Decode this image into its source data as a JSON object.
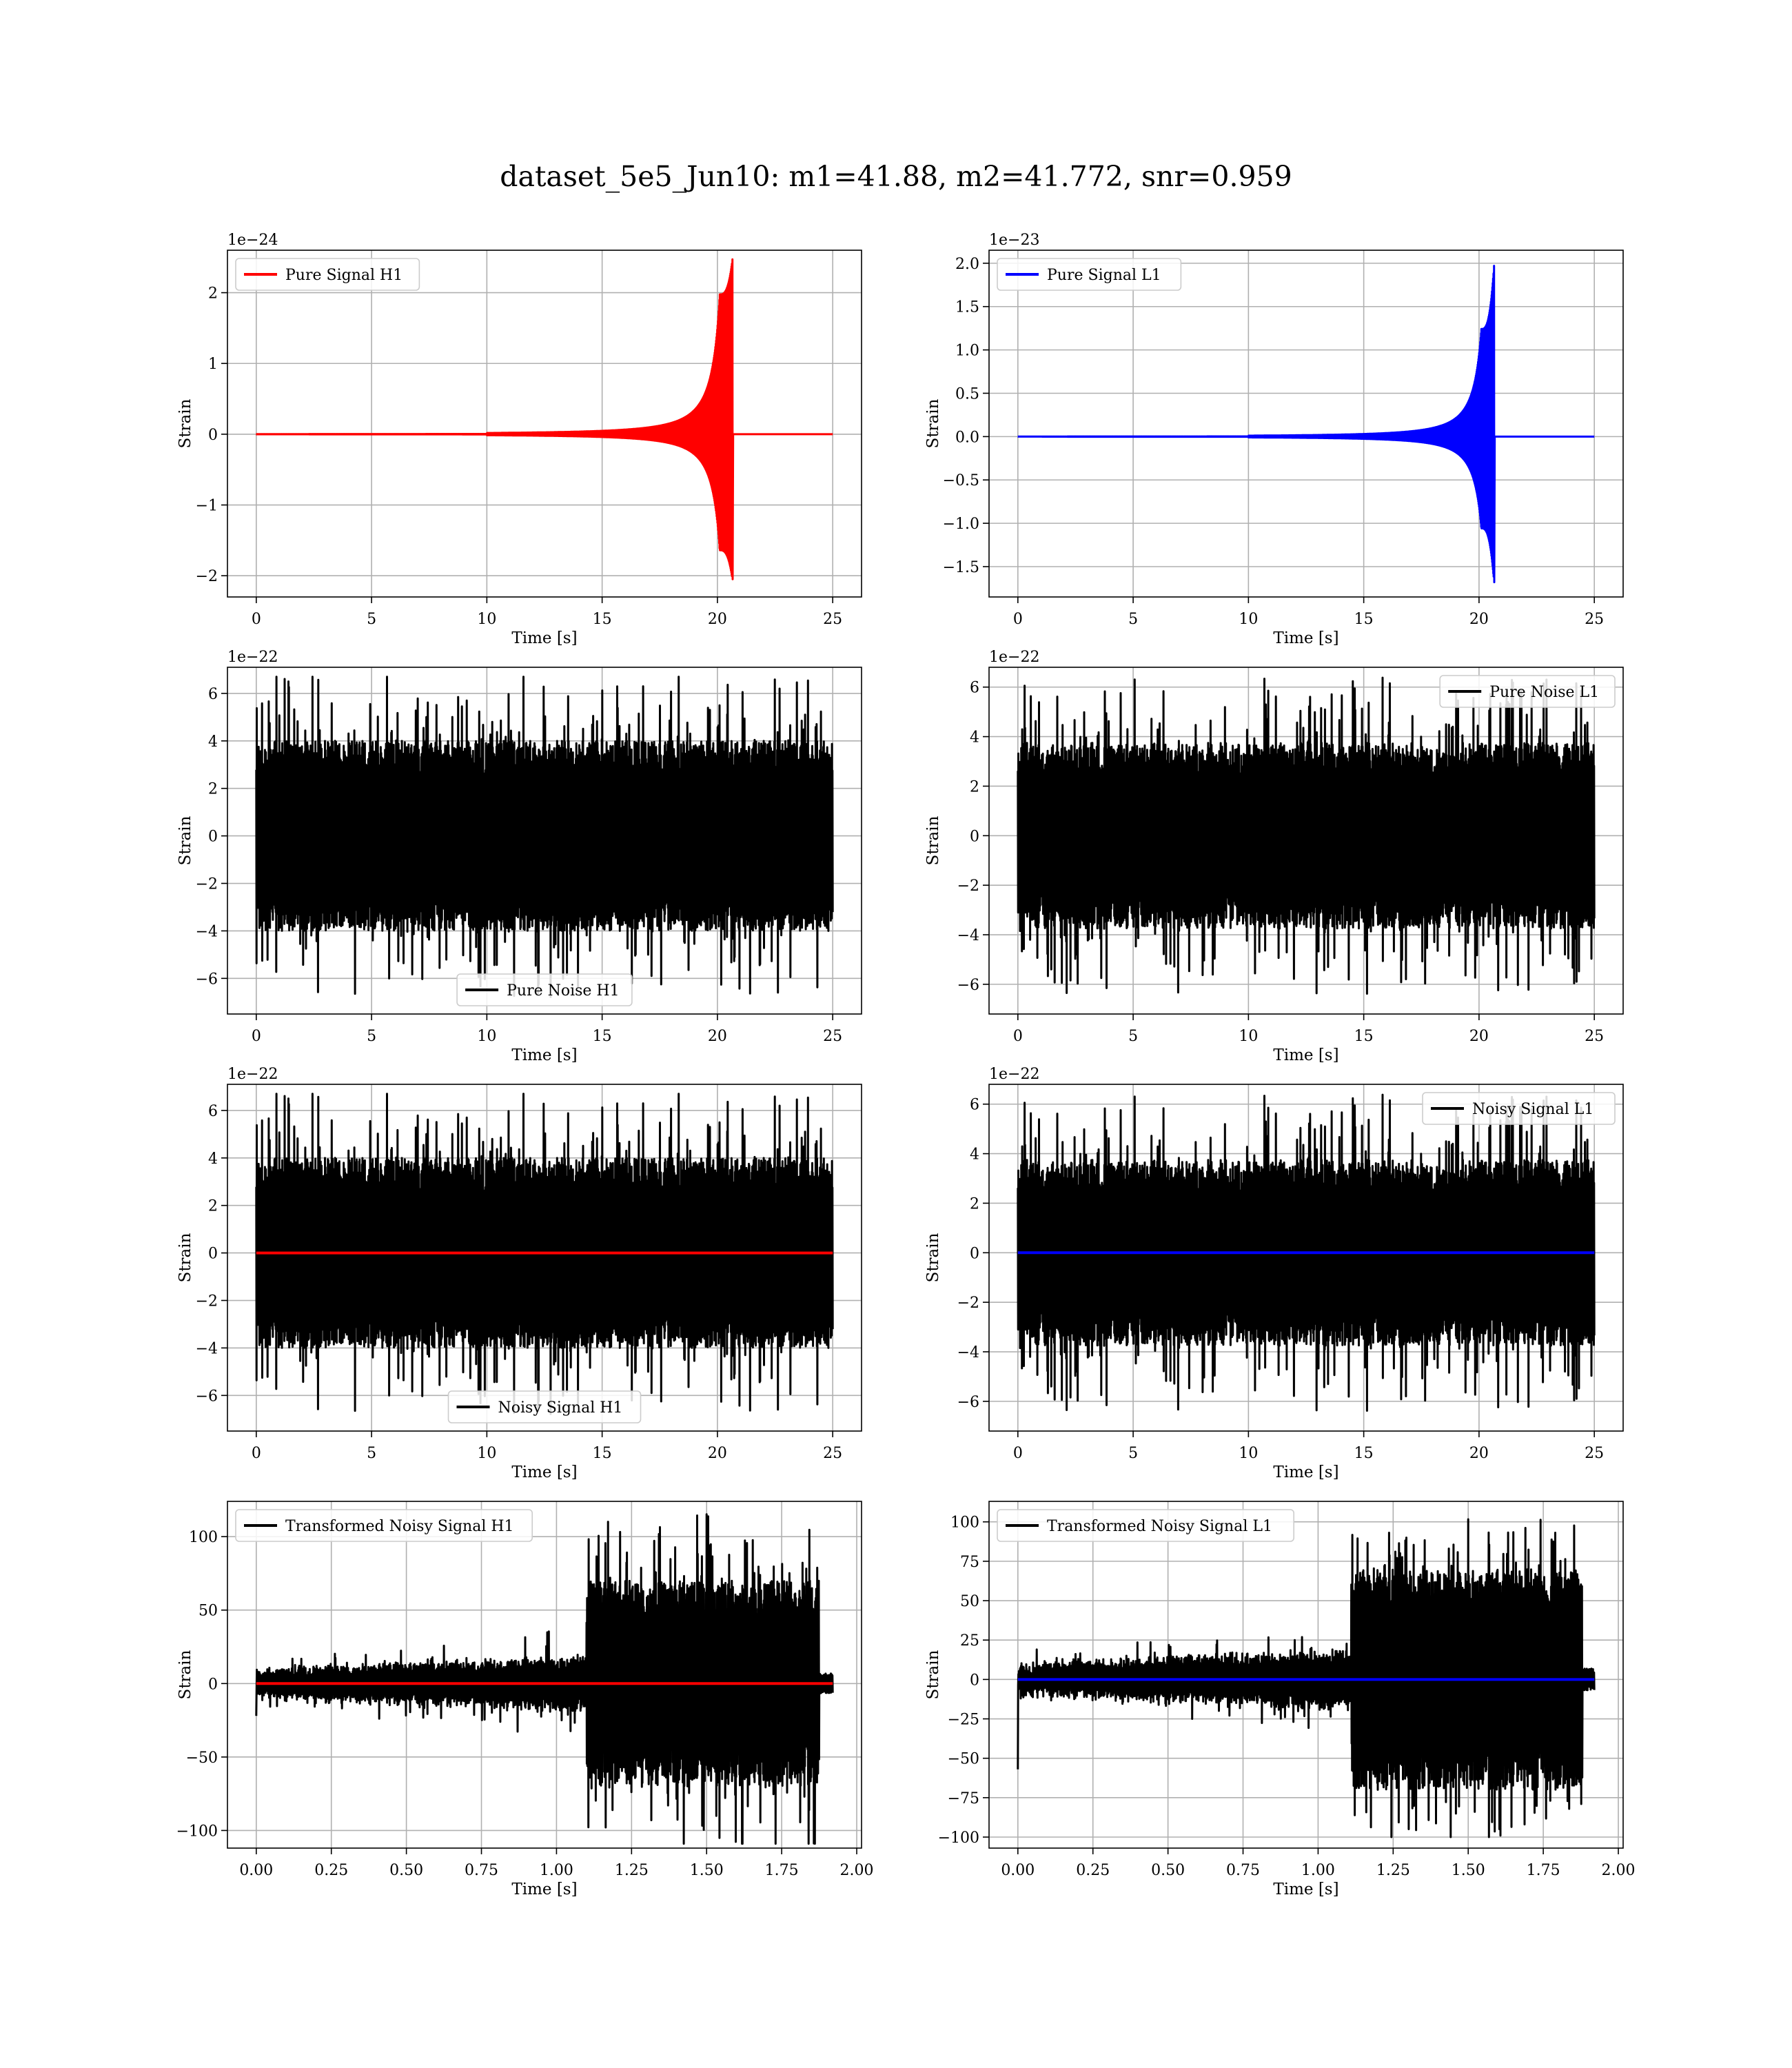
{
  "figure": {
    "suptitle": "dataset_5e5_Jun10: m1=41.88, m2=41.772, snr=0.959"
  },
  "chart_data": [
    {
      "id": "p0",
      "type": "line",
      "ylabel": "Strain",
      "xlabel": "Time [s]",
      "offset_text": "1e−24",
      "xlim": [
        -1.25,
        26.25
      ],
      "ylim": [
        -2.3,
        2.6
      ],
      "xticks": [
        0,
        5,
        10,
        15,
        20,
        25
      ],
      "xtick_labels": [
        "0",
        "5",
        "10",
        "15",
        "20",
        "25"
      ],
      "yticks": [
        -2,
        -1,
        0,
        1,
        2
      ],
      "ytick_labels": [
        "−2",
        "−1",
        "0",
        "1",
        "2"
      ],
      "grid": true,
      "legend": {
        "position": "upper-left",
        "entries": [
          {
            "label": "Pure Signal H1",
            "color": "#ff0000"
          }
        ]
      },
      "series": [
        {
          "name": "Pure Signal H1",
          "color": "#ff0000",
          "kind": "chirp",
          "x_start": 0,
          "x_end": 25,
          "merger": 20.65,
          "peak_pos": 2.47,
          "peak_neg": -2.05,
          "plateau": 0.8
        }
      ]
    },
    {
      "id": "p1",
      "type": "line",
      "ylabel": "Strain",
      "xlabel": "Time [s]",
      "offset_text": "1e−23",
      "xlim": [
        -1.25,
        26.25
      ],
      "ylim": [
        -1.85,
        2.15
      ],
      "xticks": [
        0,
        5,
        10,
        15,
        20,
        25
      ],
      "xtick_labels": [
        "0",
        "5",
        "10",
        "15",
        "20",
        "25"
      ],
      "yticks": [
        -1.5,
        -1.0,
        -0.5,
        0.0,
        0.5,
        1.0,
        1.5,
        2.0
      ],
      "ytick_labels": [
        "−1.5",
        "−1.0",
        "−0.5",
        "0.0",
        "0.5",
        "1.0",
        "1.5",
        "2.0"
      ],
      "grid": true,
      "legend": {
        "position": "upper-left",
        "entries": [
          {
            "label": "Pure Signal L1",
            "color": "#0000ff"
          }
        ]
      },
      "series": [
        {
          "name": "Pure Signal L1",
          "color": "#0000ff",
          "kind": "chirp",
          "x_start": 0,
          "x_end": 25,
          "merger": 20.65,
          "peak_pos": 1.97,
          "peak_neg": -1.68,
          "plateau": 0.63
        }
      ]
    },
    {
      "id": "p2",
      "type": "line",
      "ylabel": "Strain",
      "xlabel": "Time [s]",
      "offset_text": "1e−22",
      "xlim": [
        -1.25,
        26.25
      ],
      "ylim": [
        -7.5,
        7.1
      ],
      "xticks": [
        0,
        5,
        10,
        15,
        20,
        25
      ],
      "xtick_labels": [
        "0",
        "5",
        "10",
        "15",
        "20",
        "25"
      ],
      "yticks": [
        -6,
        -4,
        -2,
        0,
        2,
        4,
        6
      ],
      "ytick_labels": [
        "−6",
        "−4",
        "−2",
        "0",
        "2",
        "4",
        "6"
      ],
      "grid": true,
      "legend": {
        "position": "lower-center",
        "entries": [
          {
            "label": "Pure Noise H1",
            "color": "#000000"
          }
        ]
      },
      "series": [
        {
          "name": "Pure Noise H1",
          "color": "#000000",
          "kind": "noise",
          "x_start": 0,
          "x_end": 25,
          "max": 6.7,
          "min": -6.9,
          "band": 3.2,
          "seed": 11
        }
      ]
    },
    {
      "id": "p3",
      "type": "line",
      "ylabel": "Strain",
      "xlabel": "Time [s]",
      "offset_text": "1e−22",
      "xlim": [
        -1.25,
        26.25
      ],
      "ylim": [
        -7.2,
        6.8
      ],
      "xticks": [
        0,
        5,
        10,
        15,
        20,
        25
      ],
      "xtick_labels": [
        "0",
        "5",
        "10",
        "15",
        "20",
        "25"
      ],
      "yticks": [
        -6,
        -4,
        -2,
        0,
        2,
        4,
        6
      ],
      "ytick_labels": [
        "−6",
        "−4",
        "−2",
        "0",
        "2",
        "4",
        "6"
      ],
      "grid": true,
      "legend": {
        "position": "upper-right",
        "entries": [
          {
            "label": "Pure Noise L1",
            "color": "#000000"
          }
        ]
      },
      "series": [
        {
          "name": "Pure Noise L1",
          "color": "#000000",
          "kind": "noise",
          "x_start": 0,
          "x_end": 25,
          "max": 6.4,
          "min": -6.4,
          "band": 3.0,
          "seed": 23
        }
      ]
    },
    {
      "id": "p4",
      "type": "line",
      "ylabel": "Strain",
      "xlabel": "Time [s]",
      "offset_text": "1e−22",
      "xlim": [
        -1.25,
        26.25
      ],
      "ylim": [
        -7.5,
        7.1
      ],
      "xticks": [
        0,
        5,
        10,
        15,
        20,
        25
      ],
      "xtick_labels": [
        "0",
        "5",
        "10",
        "15",
        "20",
        "25"
      ],
      "yticks": [
        -6,
        -4,
        -2,
        0,
        2,
        4,
        6
      ],
      "ytick_labels": [
        "−6",
        "−4",
        "−2",
        "0",
        "2",
        "4",
        "6"
      ],
      "grid": true,
      "legend": {
        "position": "lower-center",
        "entries": [
          {
            "label": "Noisy Signal H1",
            "color": "#000000"
          }
        ]
      },
      "series": [
        {
          "name": "Noisy Signal H1",
          "color": "#000000",
          "kind": "noise",
          "x_start": 0,
          "x_end": 25,
          "max": 6.7,
          "min": -6.9,
          "band": 3.2,
          "seed": 11
        },
        {
          "color": "#ff0000",
          "kind": "flat",
          "x_start": 0,
          "x_end": 25,
          "value": 0
        }
      ]
    },
    {
      "id": "p5",
      "type": "line",
      "ylabel": "Strain",
      "xlabel": "Time [s]",
      "offset_text": "1e−22",
      "xlim": [
        -1.25,
        26.25
      ],
      "ylim": [
        -7.2,
        6.8
      ],
      "xticks": [
        0,
        5,
        10,
        15,
        20,
        25
      ],
      "xtick_labels": [
        "0",
        "5",
        "10",
        "15",
        "20",
        "25"
      ],
      "yticks": [
        -6,
        -4,
        -2,
        0,
        2,
        4,
        6
      ],
      "ytick_labels": [
        "−6",
        "−4",
        "−2",
        "0",
        "2",
        "4",
        "6"
      ],
      "grid": true,
      "legend": {
        "position": "upper-right",
        "entries": [
          {
            "label": "Noisy Signal L1",
            "color": "#000000"
          }
        ]
      },
      "series": [
        {
          "name": "Noisy Signal L1",
          "color": "#000000",
          "kind": "noise",
          "x_start": 0,
          "x_end": 25,
          "max": 6.4,
          "min": -6.4,
          "band": 3.0,
          "seed": 23
        },
        {
          "color": "#0000ff",
          "kind": "flat",
          "x_start": 0,
          "x_end": 25,
          "value": 0
        }
      ]
    },
    {
      "id": "p6",
      "type": "line",
      "ylabel": "Strain",
      "xlabel": "Time [s]",
      "offset_text": "",
      "xlim": [
        -0.096,
        2.016
      ],
      "ylim": [
        -112,
        124
      ],
      "xticks": [
        0.0,
        0.25,
        0.5,
        0.75,
        1.0,
        1.25,
        1.5,
        1.75,
        2.0
      ],
      "xtick_labels": [
        "0.00",
        "0.25",
        "0.50",
        "0.75",
        "1.00",
        "1.25",
        "1.50",
        "1.75",
        "2.00"
      ],
      "yticks": [
        -100,
        -50,
        0,
        50,
        100
      ],
      "ytick_labels": [
        "−100",
        "−50",
        "0",
        "50",
        "100"
      ],
      "grid": true,
      "legend": {
        "position": "upper-left",
        "entries": [
          {
            "label": "Transformed Noisy Signal H1",
            "color": "#000000"
          }
        ]
      },
      "series": [
        {
          "name": "Transformed Noisy Signal H1",
          "color": "#000000",
          "kind": "transformed",
          "x_start": 0,
          "x_end": 1.92,
          "step": 1.1,
          "drop": 1.875,
          "max": 116,
          "min": -109,
          "first_spike": -22,
          "seed": 5
        },
        {
          "color": "#ff0000",
          "kind": "flat",
          "x_start": 0,
          "x_end": 1.92,
          "value": 0
        }
      ]
    },
    {
      "id": "p7",
      "type": "line",
      "ylabel": "Strain",
      "xlabel": "Time [s]",
      "offset_text": "",
      "xlim": [
        -0.096,
        2.016
      ],
      "ylim": [
        -107,
        113
      ],
      "xticks": [
        0.0,
        0.25,
        0.5,
        0.75,
        1.0,
        1.25,
        1.5,
        1.75,
        2.0
      ],
      "xtick_labels": [
        "0.00",
        "0.25",
        "0.50",
        "0.75",
        "1.00",
        "1.25",
        "1.50",
        "1.75",
        "2.00"
      ],
      "yticks": [
        -100,
        -75,
        -50,
        -25,
        0,
        25,
        50,
        75,
        100
      ],
      "ytick_labels": [
        "−100",
        "−75",
        "−50",
        "−25",
        "0",
        "25",
        "50",
        "75",
        "100"
      ],
      "grid": true,
      "legend": {
        "position": "upper-left",
        "entries": [
          {
            "label": "Transformed Noisy Signal L1",
            "color": "#000000"
          }
        ]
      },
      "series": [
        {
          "name": "Transformed Noisy Signal L1",
          "color": "#000000",
          "kind": "transformed",
          "x_start": 0,
          "x_end": 1.92,
          "step": 1.11,
          "drop": 1.88,
          "max": 104,
          "min": -100,
          "first_spike": -57,
          "seed": 9
        },
        {
          "color": "#0000ff",
          "kind": "flat",
          "x_start": 0,
          "x_end": 1.92,
          "value": 0
        }
      ]
    }
  ]
}
